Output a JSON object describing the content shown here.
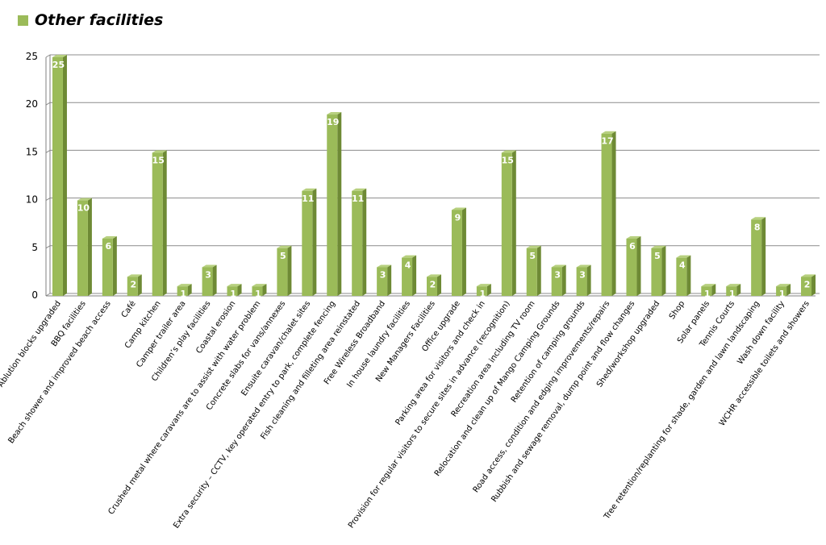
{
  "colors": {
    "bar_front": "#9BBB59",
    "bar_side": "#6E8A35",
    "bar_top": "#B7D07F",
    "grid": "#8C8C8C",
    "axis": "#808080",
    "text": "#000000",
    "data_label": "#ffffff"
  },
  "chart_data": {
    "type": "bar",
    "grid": true,
    "legend_position": "top-left",
    "ylim": [
      0,
      25
    ],
    "yticks": [
      0,
      5,
      10,
      15,
      20,
      25
    ],
    "series": [
      {
        "name": "Other facilities",
        "values": [
          25,
          10,
          6,
          2,
          15,
          1,
          3,
          1,
          1,
          5,
          11,
          19,
          11,
          3,
          4,
          2,
          9,
          1,
          15,
          5,
          3,
          3,
          17,
          6,
          5,
          4,
          1,
          1,
          8,
          1,
          2
        ]
      }
    ],
    "categories": [
      "Ablution blocks upgraded",
      "BBQ facilities",
      "Beach shower and improved beach access",
      "Café",
      "Camp kitchen",
      "Camper trailer area",
      "Children’s play facilities",
      "Coastal erosion",
      "Crushed metal where caravans are to assist with water problem",
      "Concrete slabs for vans/annexes",
      "Ensuite caravan/chalet sites",
      "Extra security – CCTV, key operated entry to park, complete fencing",
      "Fish cleaning and filleting area reinstated",
      "Free Wireless Broadband",
      "In house laundry facilities",
      "New Managers Facilities",
      "Office upgrade",
      "Parking area for visitors and check in",
      "Provision for regular visitors to secure sites in advance (recognition)",
      "Recreation area including TV room",
      "Relocation and clean up of Mango Camping Grounds",
      "Retention of camping grounds",
      "Road access, condition and edging improvements/repairs",
      "Rubbish and sewage removal, dump point and flow changes",
      "Shed/workshop upgraded",
      "Shop",
      "Solar panels",
      "Tennis Courts",
      "Tree retention/replanting for shade, garden and lawn landscaping",
      "Wash down facility",
      "WCHR accessible toilets and showers"
    ]
  }
}
